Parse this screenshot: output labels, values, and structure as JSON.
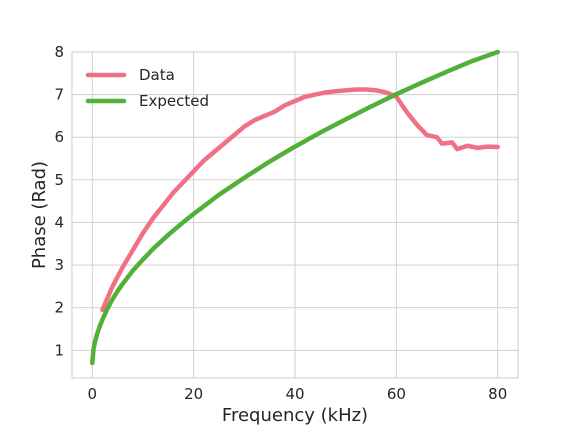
{
  "chart_data": {
    "type": "line",
    "title": "",
    "xlabel": "Frequency (kHz)",
    "ylabel": "Phase (Rad)",
    "xlim": [
      -4,
      84
    ],
    "ylim": [
      0.35,
      8.0
    ],
    "xticks": [
      0,
      20,
      40,
      60,
      80
    ],
    "yticks": [
      1,
      2,
      3,
      4,
      5,
      6,
      7,
      8
    ],
    "grid": true,
    "legend": "top-left",
    "series": [
      {
        "name": "Data",
        "color": "#f07185",
        "x": [
          2,
          4,
          6,
          8,
          10,
          12,
          14,
          16,
          18,
          20,
          22,
          24,
          26,
          28,
          30,
          32,
          34,
          36,
          38,
          40,
          42,
          44,
          46,
          48,
          50,
          52,
          54,
          56,
          58,
          60,
          62,
          64,
          66,
          68,
          69,
          71,
          72,
          74,
          76,
          78,
          80
        ],
        "values": [
          1.95,
          2.5,
          2.95,
          3.35,
          3.75,
          4.1,
          4.4,
          4.7,
          4.95,
          5.2,
          5.45,
          5.65,
          5.85,
          6.05,
          6.25,
          6.4,
          6.5,
          6.6,
          6.75,
          6.85,
          6.95,
          7.0,
          7.05,
          7.08,
          7.1,
          7.12,
          7.12,
          7.1,
          7.05,
          6.95,
          6.6,
          6.3,
          6.05,
          6.0,
          5.85,
          5.88,
          5.72,
          5.8,
          5.75,
          5.78,
          5.77
        ]
      },
      {
        "name": "Expected",
        "color": "#52b039",
        "x": [
          0,
          0.25,
          0.5,
          1,
          1.5,
          2,
          3,
          4,
          5,
          6,
          8,
          10,
          12,
          15,
          18,
          20,
          25,
          30,
          35,
          40,
          45,
          50,
          55,
          60,
          65,
          70,
          75,
          80
        ],
        "values": [
          0.7,
          1.03,
          1.18,
          1.4,
          1.57,
          1.72,
          1.98,
          2.2,
          2.39,
          2.56,
          2.87,
          3.13,
          3.38,
          3.71,
          4.01,
          4.2,
          4.65,
          5.05,
          5.43,
          5.78,
          6.11,
          6.42,
          6.72,
          7.01,
          7.28,
          7.54,
          7.79,
          8.0
        ]
      }
    ]
  }
}
